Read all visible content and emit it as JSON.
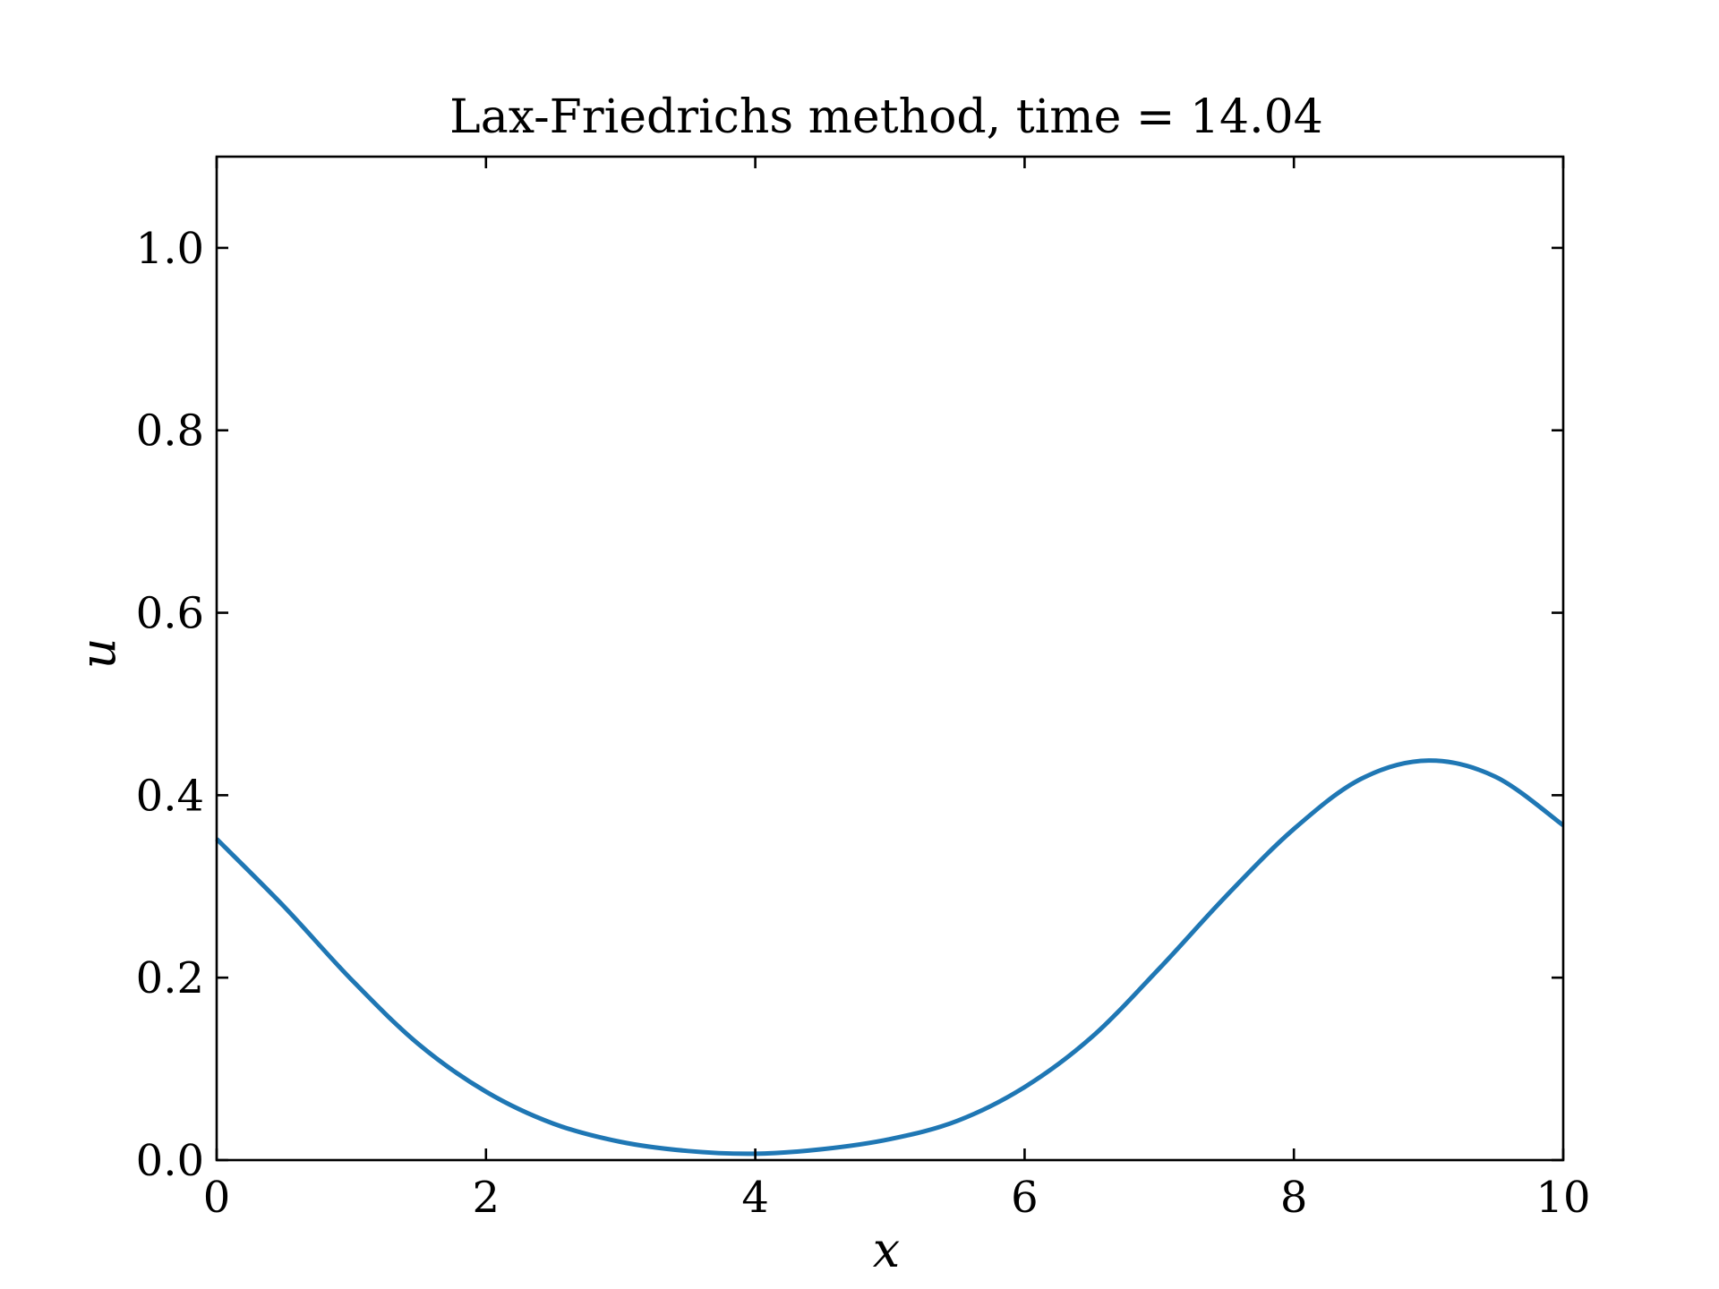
{
  "chart_data": {
    "type": "line",
    "title": "Lax-Friedrichs method, time = 14.04",
    "xlabel": "x",
    "ylabel": "u",
    "xlim": [
      0,
      10
    ],
    "ylim": [
      0,
      1.1
    ],
    "x_ticks": [
      0,
      2,
      4,
      6,
      8,
      10
    ],
    "x_tick_labels": [
      "0",
      "2",
      "4",
      "6",
      "8",
      "10"
    ],
    "y_ticks": [
      0,
      0.2,
      0.4,
      0.6,
      0.8,
      1.0
    ],
    "y_tick_labels": [
      "0.0",
      "0.2",
      "0.4",
      "0.6",
      "0.8",
      "1.0"
    ],
    "grid": false,
    "line_color": "#1f77b4",
    "series": [
      {
        "x": [
          0,
          0.5,
          1.0,
          1.5,
          2.0,
          2.5,
          3.0,
          3.5,
          4.0,
          4.5,
          5.0,
          5.5,
          6.0,
          6.5,
          7.0,
          7.5,
          8.0,
          8.5,
          9.0,
          9.5,
          10.0
        ],
        "y": [
          0.352,
          0.278,
          0.198,
          0.127,
          0.075,
          0.04,
          0.02,
          0.01,
          0.007,
          0.012,
          0.023,
          0.043,
          0.08,
          0.135,
          0.21,
          0.29,
          0.363,
          0.418,
          0.438,
          0.42,
          0.367
        ]
      }
    ]
  }
}
